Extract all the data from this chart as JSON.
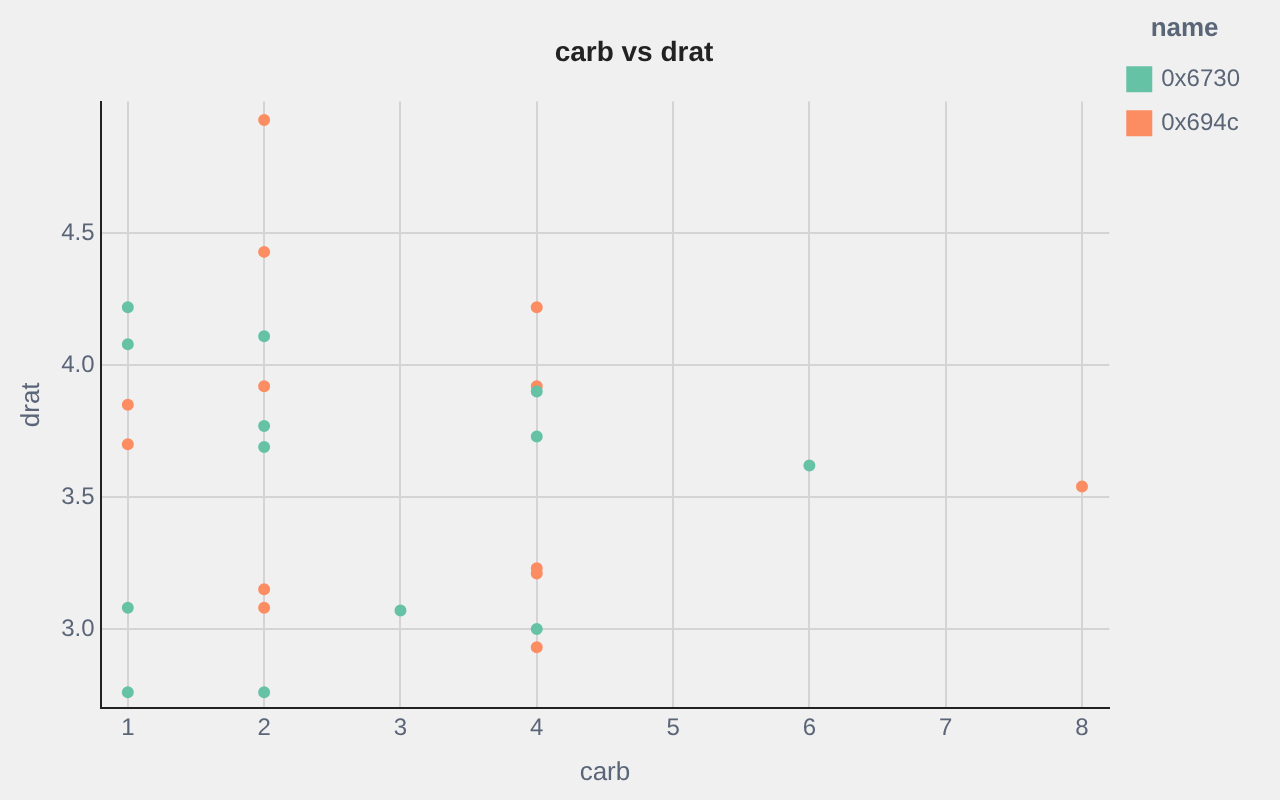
{
  "chart_data": {
    "type": "scatter",
    "title": "carb vs drat",
    "xlabel": "carb",
    "ylabel": "drat",
    "legend_title": "name",
    "legend": "top right",
    "grid": true,
    "marker": "circle",
    "xlim": [
      0.8,
      8.2
    ],
    "xticks": [
      1,
      2,
      3,
      4,
      5,
      6,
      7,
      8
    ],
    "ylim": [
      2.7,
      5.0
    ],
    "yticks": [
      {
        "value": 3,
        "label": "3.0"
      },
      {
        "value": 3.5,
        "label": "3.5"
      },
      {
        "value": 4,
        "label": "4.0"
      },
      {
        "value": 4.5,
        "label": "4.5"
      }
    ],
    "series": [
      {
        "name": "0x6730",
        "color": "#66c2a5",
        "x": [
          1,
          1,
          1,
          1,
          2,
          2,
          2,
          2,
          3,
          4,
          4,
          4,
          6
        ],
        "values": [
          4.22,
          4.08,
          3.08,
          2.76,
          4.11,
          3.77,
          3.69,
          2.76,
          3.07,
          3.9,
          3.73,
          3.0,
          3.62
        ]
      },
      {
        "name": "0x694c",
        "color": "#fc8d62",
        "x": [
          1,
          1,
          2,
          2,
          2,
          2,
          2,
          4,
          4,
          4,
          4,
          4,
          8
        ],
        "values": [
          3.85,
          3.7,
          4.93,
          4.43,
          3.92,
          3.15,
          3.08,
          4.22,
          3.92,
          3.23,
          3.21,
          2.93,
          3.54
        ]
      }
    ]
  }
}
